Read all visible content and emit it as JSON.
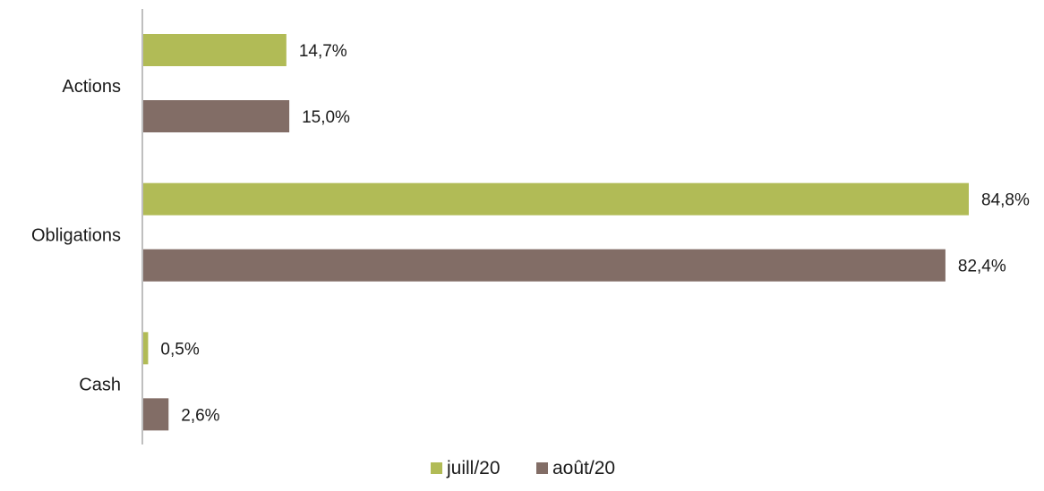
{
  "chart_data": {
    "type": "bar",
    "orientation": "horizontal",
    "categories": [
      "Actions",
      "Obligations",
      "Cash"
    ],
    "series": [
      {
        "name": "juill/20",
        "values": [
          14.7,
          84.8,
          0.5
        ],
        "labels": [
          "14,7%",
          "84,8%",
          "0,5%"
        ]
      },
      {
        "name": "août/20",
        "values": [
          15.0,
          82.4,
          2.6
        ],
        "labels": [
          "15,0%",
          "82,4%",
          "2,6%"
        ]
      }
    ],
    "title": "",
    "xlabel": "",
    "ylabel": "",
    "xlim": [
      0,
      85
    ],
    "grid": false,
    "legend_position": "bottom"
  },
  "colors": {
    "juill/20": "#b1bb56",
    "août/20": "#826d66",
    "axis": "#7f7f7f"
  }
}
